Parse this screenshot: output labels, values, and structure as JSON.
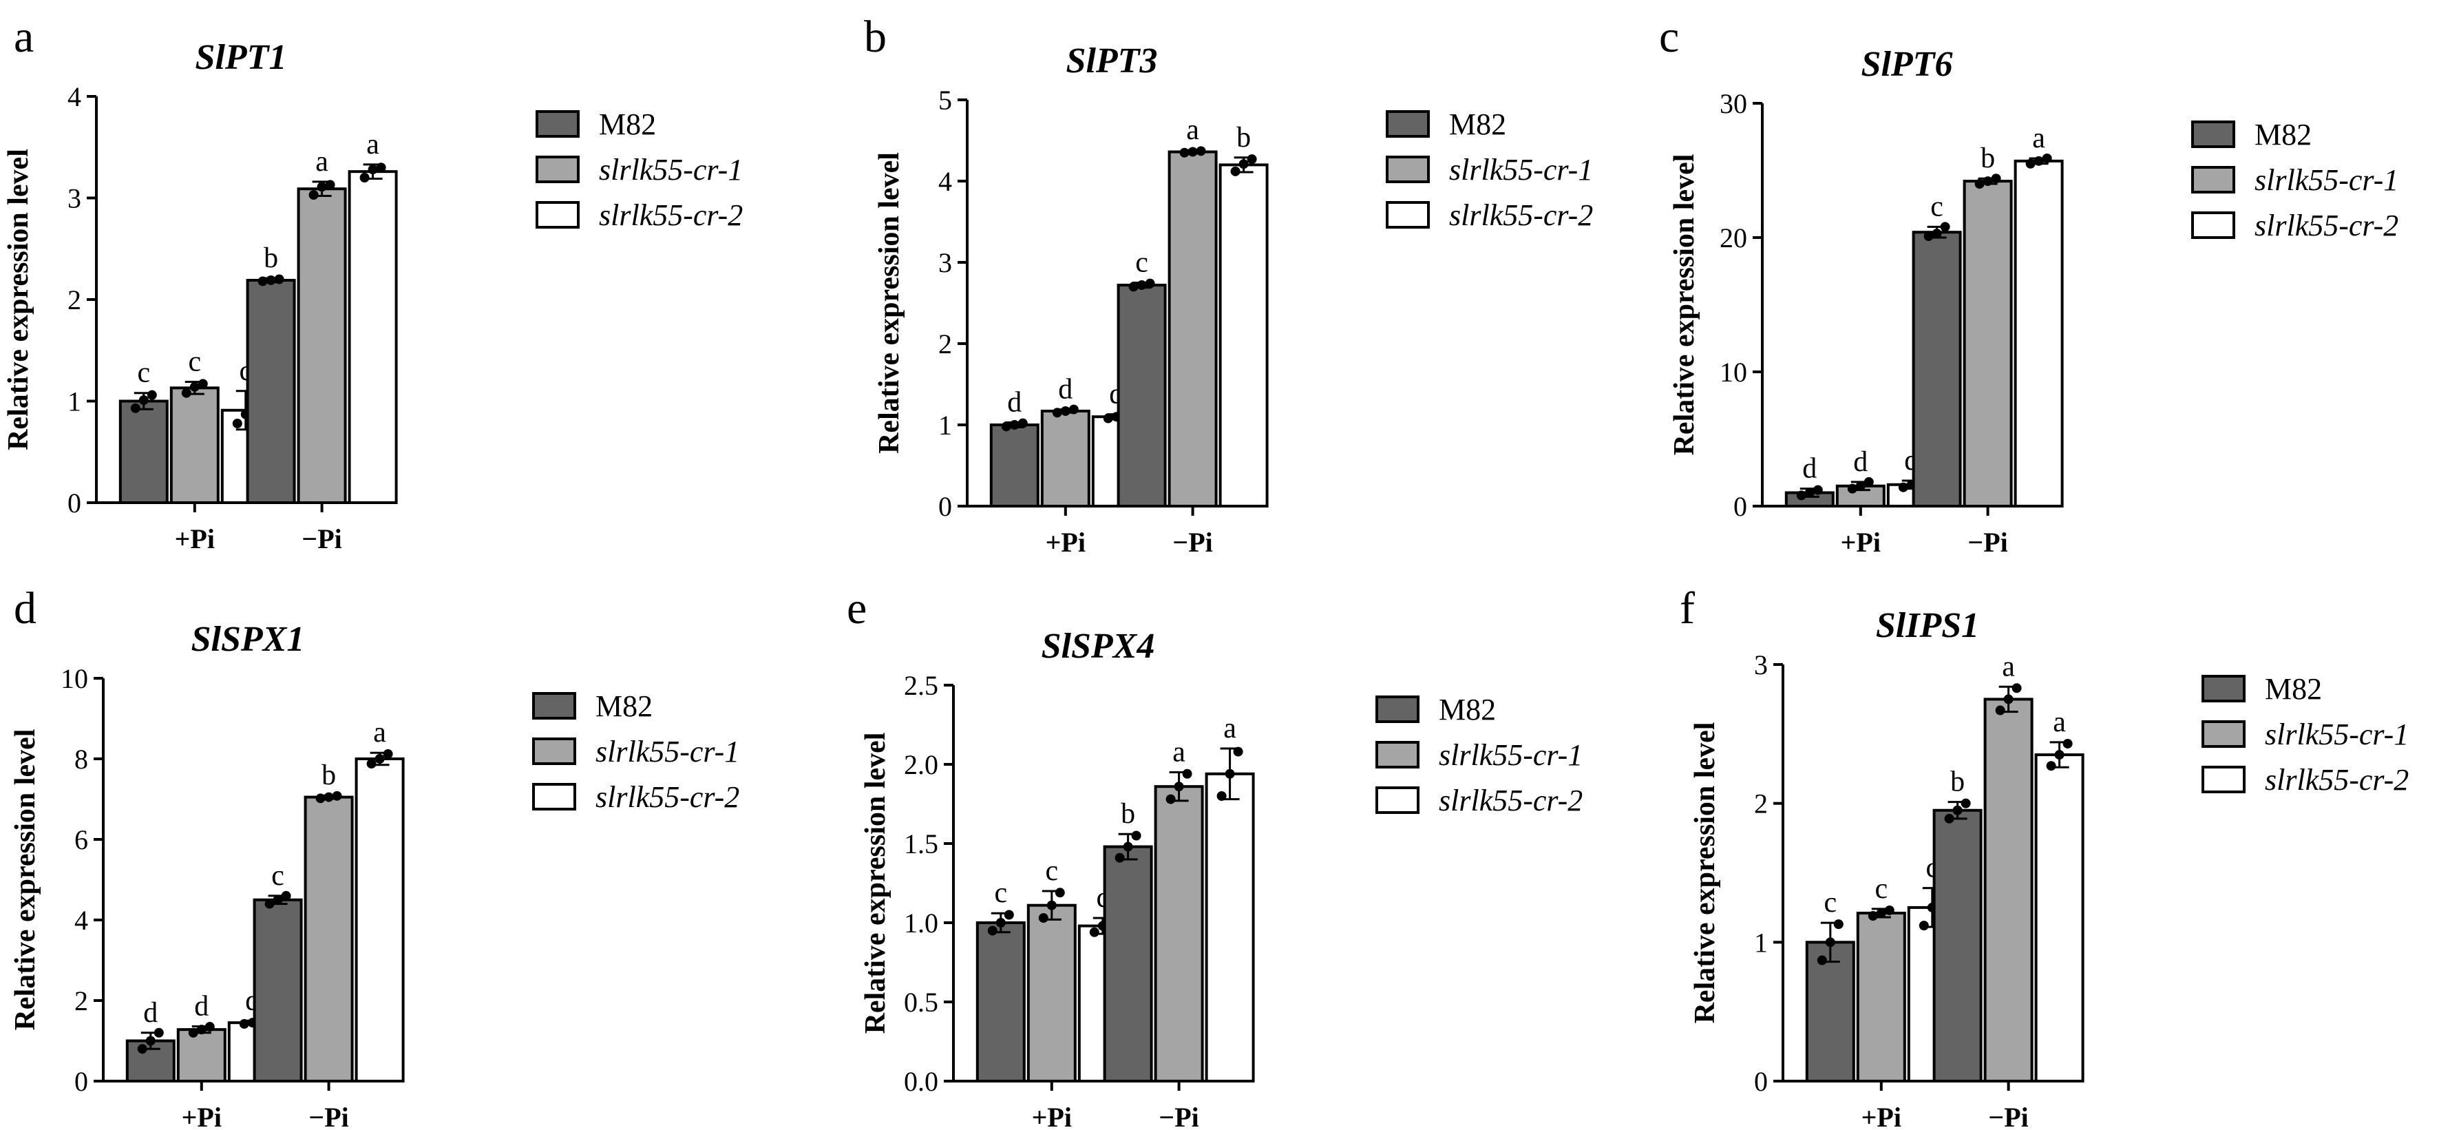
{
  "figure": {
    "series_names": [
      "M82",
      "slrlk55-cr-1",
      "slrlk55-cr-2"
    ],
    "series_colors": [
      "#646464",
      "#a5a5a5",
      "#ffffff"
    ],
    "italic_series": [
      false,
      true,
      true
    ],
    "group_labels": [
      "+Pi",
      "−Pi"
    ],
    "ylabel": "Relative expression level"
  },
  "chart_data": [
    {
      "panel": "a",
      "title": "SlPT1",
      "type": "bar",
      "categories": [
        "+Pi",
        "−Pi"
      ],
      "ylim": [
        0,
        4
      ],
      "yticks": [
        0,
        1,
        2,
        3,
        4
      ],
      "ytick_labels": [
        "0",
        "1",
        "2",
        "3",
        "4"
      ],
      "series": [
        {
          "name": "M82",
          "values": [
            1.0,
            2.19
          ],
          "errors": [
            0.08,
            0.02
          ],
          "letters": [
            "c",
            "b"
          ],
          "points": [
            [
              0.93,
              1.06,
              1.01
            ],
            [
              2.18,
              2.2,
              2.19
            ]
          ]
        },
        {
          "name": "slrlk55-cr-1",
          "values": [
            1.13,
            3.09
          ],
          "errors": [
            0.06,
            0.07
          ],
          "letters": [
            "c",
            "a"
          ],
          "points": [
            [
              1.08,
              1.17,
              1.14
            ],
            [
              3.03,
              3.13,
              3.11
            ]
          ]
        },
        {
          "name": "slrlk55-cr-2",
          "values": [
            0.91,
            3.26
          ],
          "errors": [
            0.19,
            0.07
          ],
          "letters": [
            "c",
            "a"
          ],
          "points": [
            [
              0.78,
              1.08,
              0.87
            ],
            [
              3.2,
              3.3,
              3.28
            ]
          ]
        }
      ]
    },
    {
      "panel": "b",
      "title": "SlPT3",
      "type": "bar",
      "categories": [
        "+Pi",
        "−Pi"
      ],
      "ylim": [
        0,
        5
      ],
      "yticks": [
        0,
        1,
        2,
        3,
        4,
        5
      ],
      "ytick_labels": [
        "0",
        "1",
        "2",
        "3",
        "4",
        "5"
      ],
      "series": [
        {
          "name": "M82",
          "values": [
            1.0,
            2.72
          ],
          "errors": [
            0.03,
            0.03
          ],
          "letters": [
            "d",
            "c"
          ],
          "points": [
            [
              0.98,
              1.02,
              1.0
            ],
            [
              2.7,
              2.74,
              2.72
            ]
          ]
        },
        {
          "name": "slrlk55-cr-1",
          "values": [
            1.17,
            4.36
          ],
          "errors": [
            0.02,
            0.02
          ],
          "letters": [
            "d",
            "a"
          ],
          "points": [
            [
              1.15,
              1.19,
              1.17
            ],
            [
              4.35,
              4.37,
              4.36
            ]
          ]
        },
        {
          "name": "slrlk55-cr-2",
          "values": [
            1.1,
            4.2
          ],
          "errors": [
            0.03,
            0.09
          ],
          "letters": [
            "d",
            "b"
          ],
          "points": [
            [
              1.08,
              1.12,
              1.1
            ],
            [
              4.12,
              4.27,
              4.21
            ]
          ]
        }
      ]
    },
    {
      "panel": "c",
      "title": "SlPT6",
      "type": "bar",
      "categories": [
        "+Pi",
        "−Pi"
      ],
      "ylim": [
        0,
        30
      ],
      "yticks": [
        0,
        10,
        20,
        30
      ],
      "ytick_labels": [
        "0",
        "10",
        "20",
        "30"
      ],
      "series": [
        {
          "name": "M82",
          "values": [
            1.0,
            20.4
          ],
          "errors": [
            0.3,
            0.4
          ],
          "letters": [
            "d",
            "c"
          ],
          "points": [
            [
              0.8,
              1.2,
              1.0
            ],
            [
              20.1,
              20.8,
              20.3
            ]
          ]
        },
        {
          "name": "slrlk55-cr-1",
          "values": [
            1.5,
            24.2
          ],
          "errors": [
            0.3,
            0.2
          ],
          "letters": [
            "d",
            "b"
          ],
          "points": [
            [
              1.3,
              1.8,
              1.5
            ],
            [
              24.0,
              24.4,
              24.2
            ]
          ]
        },
        {
          "name": "slrlk55-cr-2",
          "values": [
            1.6,
            25.7
          ],
          "errors": [
            0.3,
            0.2
          ],
          "letters": [
            "d",
            "a"
          ],
          "points": [
            [
              1.4,
              1.9,
              1.6
            ],
            [
              25.5,
              25.9,
              25.7
            ]
          ]
        }
      ]
    },
    {
      "panel": "d",
      "title": "SlSPX1",
      "type": "bar",
      "categories": [
        "+Pi",
        "−Pi"
      ],
      "ylim": [
        0,
        10
      ],
      "yticks": [
        0,
        2,
        4,
        6,
        8,
        10
      ],
      "ytick_labels": [
        "0",
        "2",
        "4",
        "6",
        "8",
        "10"
      ],
      "series": [
        {
          "name": "M82",
          "values": [
            1.0,
            4.5
          ],
          "errors": [
            0.2,
            0.1
          ],
          "letters": [
            "d",
            "c"
          ],
          "points": [
            [
              0.8,
              1.2,
              1.0
            ],
            [
              4.4,
              4.6,
              4.5
            ]
          ]
        },
        {
          "name": "slrlk55-cr-1",
          "values": [
            1.28,
            7.05
          ],
          "errors": [
            0.08,
            0.04
          ],
          "letters": [
            "d",
            "b"
          ],
          "points": [
            [
              1.2,
              1.35,
              1.28
            ],
            [
              7.02,
              7.08,
              7.05
            ]
          ]
        },
        {
          "name": "slrlk55-cr-2",
          "values": [
            1.45,
            8.0
          ],
          "errors": [
            0.05,
            0.15
          ],
          "letters": [
            "d",
            "a"
          ],
          "points": [
            [
              1.42,
              1.48,
              1.45
            ],
            [
              7.88,
              8.12,
              8.0
            ]
          ]
        }
      ]
    },
    {
      "panel": "e",
      "title": "SlSPX4",
      "type": "bar",
      "categories": [
        "+Pi",
        "−Pi"
      ],
      "ylim": [
        0,
        2.5
      ],
      "yticks": [
        0,
        0.5,
        1.0,
        1.5,
        2.0,
        2.5
      ],
      "ytick_labels": [
        "0.0",
        "0.5",
        "1.0",
        "1.5",
        "2.0",
        "2.5"
      ],
      "series": [
        {
          "name": "M82",
          "values": [
            1.0,
            1.48
          ],
          "errors": [
            0.06,
            0.08
          ],
          "letters": [
            "c",
            "b"
          ],
          "points": [
            [
              0.95,
              1.05,
              1.0
            ],
            [
              1.41,
              1.55,
              1.48
            ]
          ]
        },
        {
          "name": "slrlk55-cr-1",
          "values": [
            1.11,
            1.86
          ],
          "errors": [
            0.09,
            0.09
          ],
          "letters": [
            "c",
            "a"
          ],
          "points": [
            [
              1.03,
              1.19,
              1.11
            ],
            [
              1.78,
              1.94,
              1.86
            ]
          ]
        },
        {
          "name": "slrlk55-cr-2",
          "values": [
            0.98,
            1.94
          ],
          "errors": [
            0.05,
            0.16
          ],
          "letters": [
            "c",
            "a"
          ],
          "points": [
            [
              0.94,
              1.02,
              0.98
            ],
            [
              1.8,
              2.08,
              1.94
            ]
          ]
        }
      ]
    },
    {
      "panel": "f",
      "title": "SlIPS1",
      "type": "bar",
      "categories": [
        "+Pi",
        "−Pi"
      ],
      "ylim": [
        0,
        3
      ],
      "yticks": [
        0,
        1,
        2,
        3
      ],
      "ytick_labels": [
        "0",
        "1",
        "2",
        "3"
      ],
      "series": [
        {
          "name": "M82",
          "values": [
            1.0,
            1.95
          ],
          "errors": [
            0.14,
            0.06
          ],
          "letters": [
            "c",
            "b"
          ],
          "points": [
            [
              0.87,
              1.13,
              1.0
            ],
            [
              1.89,
              2.0,
              1.95
            ]
          ]
        },
        {
          "name": "slrlk55-cr-1",
          "values": [
            1.21,
            2.75
          ],
          "errors": [
            0.03,
            0.09
          ],
          "letters": [
            "c",
            "a"
          ],
          "points": [
            [
              1.19,
              1.23,
              1.21
            ],
            [
              2.67,
              2.83,
              2.75
            ]
          ]
        },
        {
          "name": "slrlk55-cr-2",
          "values": [
            1.25,
            2.35
          ],
          "errors": [
            0.14,
            0.09
          ],
          "letters": [
            "c",
            "a"
          ],
          "points": [
            [
              1.12,
              1.38,
              1.25
            ],
            [
              2.27,
              2.43,
              2.35
            ]
          ]
        }
      ]
    }
  ]
}
